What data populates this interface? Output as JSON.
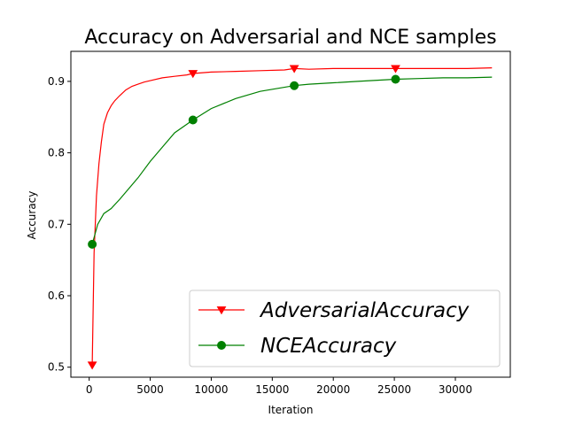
{
  "chart_data": {
    "type": "line",
    "title": "Accuracy on Adversarial and NCE samples",
    "xlabel": "Iteration",
    "ylabel": "Accuracy",
    "xlim": [
      -1500,
      34500
    ],
    "ylim": [
      0.486,
      0.942
    ],
    "xticks": [
      0,
      5000,
      10000,
      15000,
      20000,
      25000,
      30000
    ],
    "yticks": [
      0.5,
      0.6,
      0.7,
      0.8,
      0.9
    ],
    "xtick_labels": [
      "0",
      "5000",
      "10000",
      "15000",
      "20000",
      "25000",
      "30000"
    ],
    "ytick_labels": [
      "0.5",
      "0.6",
      "0.7",
      "0.8",
      "0.9"
    ],
    "grid": false,
    "legend_position": "lower-right",
    "series": [
      {
        "name": "AdversarialAccuracy",
        "color": "#ff0000",
        "marker": "triangle-down",
        "markers_at": [
          [
            250,
            0.503
          ],
          [
            8500,
            0.911
          ],
          [
            16800,
            0.918
          ],
          [
            25100,
            0.918
          ]
        ],
        "x": [
          250,
          400,
          600,
          800,
          1000,
          1200,
          1500,
          1800,
          2100,
          2500,
          3000,
          3500,
          4000,
          4500,
          5000,
          6000,
          7000,
          8000,
          8500,
          10000,
          12000,
          14000,
          16000,
          16800,
          18000,
          20000,
          22000,
          24000,
          25100,
          27000,
          29000,
          31000,
          33000
        ],
        "y": [
          0.503,
          0.66,
          0.74,
          0.785,
          0.815,
          0.84,
          0.856,
          0.866,
          0.873,
          0.88,
          0.888,
          0.893,
          0.896,
          0.899,
          0.901,
          0.905,
          0.907,
          0.909,
          0.911,
          0.913,
          0.914,
          0.915,
          0.916,
          0.918,
          0.917,
          0.918,
          0.918,
          0.918,
          0.918,
          0.918,
          0.918,
          0.918,
          0.919
        ]
      },
      {
        "name": "NCEAccuracy",
        "color": "#008000",
        "marker": "circle",
        "markers_at": [
          [
            250,
            0.672
          ],
          [
            8500,
            0.846
          ],
          [
            16800,
            0.894
          ],
          [
            25100,
            0.903
          ]
        ],
        "x": [
          250,
          700,
          1200,
          1800,
          2500,
          3000,
          4000,
          5000,
          6000,
          7000,
          8500,
          10000,
          12000,
          14000,
          16800,
          18000,
          20000,
          22000,
          25100,
          27000,
          29000,
          31000,
          33000
        ],
        "y": [
          0.672,
          0.7,
          0.715,
          0.722,
          0.735,
          0.745,
          0.765,
          0.788,
          0.808,
          0.828,
          0.846,
          0.862,
          0.876,
          0.886,
          0.894,
          0.896,
          0.898,
          0.9,
          0.903,
          0.904,
          0.905,
          0.905,
          0.906
        ]
      }
    ]
  }
}
